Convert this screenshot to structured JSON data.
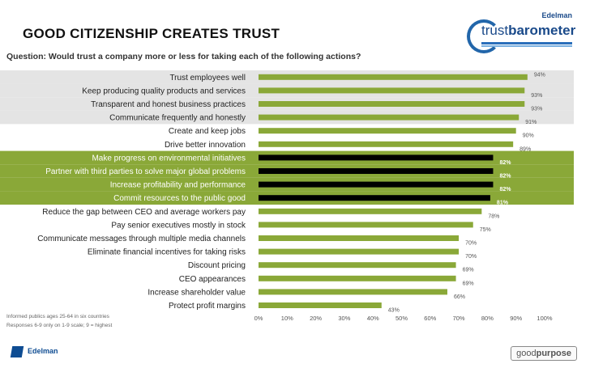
{
  "header": {
    "title": "GOOD CITIZENSHIP CREATES TRUST",
    "question": "Question: Would trust a company more or less for taking each of the following actions?"
  },
  "logo": {
    "brand": "Edelman",
    "name_light": "trust",
    "name_bold": "barometer"
  },
  "notes": [
    "Informed publics ages 25-64 in six countries",
    "Responses 6-9 only on 1-9 scale; 9 = highest"
  ],
  "footer": {
    "left_logo": "Edelman",
    "right_logo_light": "good",
    "right_logo_bold": "purpose"
  },
  "colors": {
    "bar_green": "#8aa838",
    "bar_black": "#000000",
    "band_gray": "#e4e4e4",
    "band_green": "#8aa838"
  },
  "chart_data": {
    "type": "bar",
    "orientation": "horizontal",
    "title": "GOOD CITIZENSHIP CREATES TRUST",
    "xlabel": "",
    "ylabel": "",
    "xlim": [
      0,
      100
    ],
    "x_ticks": [
      "0%",
      "10%",
      "20%",
      "30%",
      "40%",
      "50%",
      "60%",
      "70%",
      "80%",
      "90%",
      "100%"
    ],
    "grid": false,
    "categories": [
      "Trust employees well",
      "Keep producing quality products and services",
      "Transparent and honest business practices",
      "Communicate frequently and honestly",
      "Create and keep jobs",
      "Drive better innovation",
      "Make progress on environmental initiatives",
      "Partner with third parties to solve major global problems",
      "Increase profitability and performance",
      "Commit resources to the public good",
      "Reduce the gap between CEO and average workers pay",
      "Pay senior executives mostly in stock",
      "Communicate messages through multiple media channels",
      "Eliminate financial incentives for taking risks",
      "Discount pricing",
      "CEO appearances",
      "Increase shareholder value",
      "Protect profit margins"
    ],
    "values": [
      94,
      93,
      93,
      91,
      90,
      89,
      82,
      82,
      82,
      81,
      78,
      75,
      70,
      70,
      69,
      69,
      66,
      43
    ],
    "value_labels": [
      "94%",
      "93%",
      "93%",
      "91%",
      "90%",
      "89%",
      "82%",
      "82%",
      "82%",
      "81%",
      "78%",
      "75%",
      "70%",
      "70%",
      "69%",
      "69%",
      "66%",
      "43%"
    ],
    "highlight": [
      "gray",
      "gray",
      "gray",
      "gray",
      "none",
      "none",
      "green",
      "green",
      "green",
      "green",
      "none",
      "none",
      "none",
      "none",
      "none",
      "none",
      "none",
      "none"
    ],
    "bar_colors": [
      "green",
      "green",
      "green",
      "green",
      "green",
      "green",
      "black",
      "black",
      "black",
      "black",
      "green",
      "green",
      "green",
      "green",
      "green",
      "green",
      "green",
      "green"
    ]
  }
}
